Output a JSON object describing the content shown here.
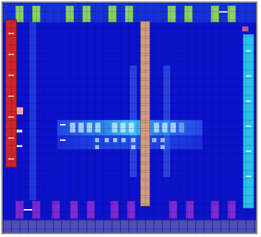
{
  "board": {
    "colors": {
      "background": "#0b12cc",
      "top_pads": "#8ad06a",
      "bottom_pads": "#7a2ad8",
      "left_strip": "#d0242c",
      "right_strip": "#28c0ee",
      "column": "#d0a07a",
      "bottom_band": "#4d4dbf"
    },
    "icons": {
      "top_pad": "green-pad-icon",
      "bottom_pad": "purple-pad-icon",
      "left_strip": "red-strip-icon",
      "right_strip": "cyan-strip-icon",
      "column": "tan-column-icon"
    }
  }
}
